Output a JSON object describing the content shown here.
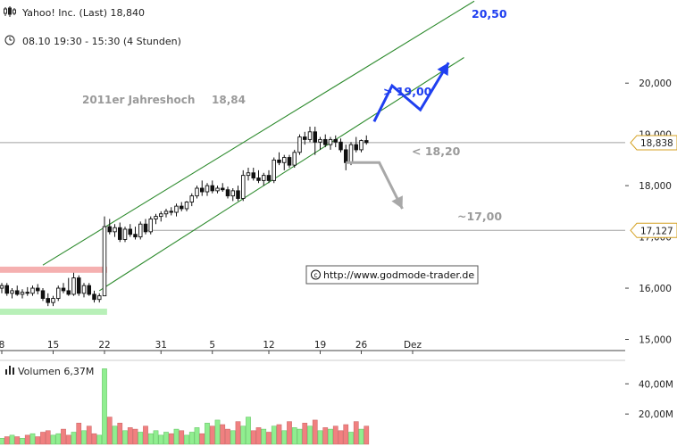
{
  "header": {
    "title": "Yahoo! Inc. (Last) 18,840",
    "timeframe": "08.10 19:30 - 15:30 (4 Stunden)"
  },
  "source": "http://www.godmode-trader.de",
  "volume_label": "Volumen 6,37M",
  "colors": {
    "channel": "#2e8b2e",
    "up_volume": "#90ee90",
    "down_volume": "#f08080",
    "bullish_arrow": "#1f3ff0",
    "bearish_arrow": "#a8a8a8",
    "resistance_zone": "#f5b0b0",
    "support_zone": "#b8f0b8",
    "hline": "#a0a0a0"
  },
  "chart_data": {
    "type": "candlestick",
    "price_axis": {
      "ticks": [
        "20,000",
        "18,000",
        "16,000",
        "15,000"
      ],
      "tick_values": [
        20.0,
        18.0,
        16.0,
        15.0
      ],
      "obscured_ticks": [
        "19,000",
        "17,000"
      ],
      "obscured_values": [
        19.0,
        17.0
      ],
      "range": [
        14.8,
        21.1
      ]
    },
    "volume_axis": {
      "ticks": [
        "40,00M",
        "20,00M"
      ],
      "tick_values": [
        40.0,
        20.0
      ],
      "range": [
        0,
        52
      ]
    },
    "x_axis": {
      "ticks": [
        "8",
        "15",
        "22",
        "31",
        "5",
        "12",
        "19",
        "26",
        "Dez"
      ]
    },
    "candles": [
      {
        "o": 16.0,
        "h": 16.1,
        "l": 15.9,
        "c": 16.05
      },
      {
        "o": 16.05,
        "h": 16.1,
        "l": 15.85,
        "c": 15.9
      },
      {
        "o": 15.9,
        "h": 16.0,
        "l": 15.8,
        "c": 15.95
      },
      {
        "o": 15.95,
        "h": 16.05,
        "l": 15.85,
        "c": 15.88
      },
      {
        "o": 15.88,
        "h": 15.98,
        "l": 15.8,
        "c": 15.92
      },
      {
        "o": 15.92,
        "h": 16.02,
        "l": 15.85,
        "c": 15.9
      },
      {
        "o": 15.9,
        "h": 16.05,
        "l": 15.85,
        "c": 16.0
      },
      {
        "o": 16.0,
        "h": 16.08,
        "l": 15.88,
        "c": 15.95
      },
      {
        "o": 15.95,
        "h": 16.0,
        "l": 15.75,
        "c": 15.8
      },
      {
        "o": 15.8,
        "h": 15.9,
        "l": 15.65,
        "c": 15.72
      },
      {
        "o": 15.72,
        "h": 15.85,
        "l": 15.65,
        "c": 15.8
      },
      {
        "o": 15.8,
        "h": 16.05,
        "l": 15.75,
        "c": 16.0
      },
      {
        "o": 16.0,
        "h": 16.1,
        "l": 15.9,
        "c": 15.95
      },
      {
        "o": 15.95,
        "h": 16.2,
        "l": 15.85,
        "c": 15.88
      },
      {
        "o": 15.88,
        "h": 16.3,
        "l": 15.85,
        "c": 16.2
      },
      {
        "o": 16.2,
        "h": 16.25,
        "l": 15.85,
        "c": 15.9
      },
      {
        "o": 15.9,
        "h": 16.1,
        "l": 15.82,
        "c": 16.05
      },
      {
        "o": 16.05,
        "h": 16.1,
        "l": 15.85,
        "c": 15.88
      },
      {
        "o": 15.88,
        "h": 15.95,
        "l": 15.72,
        "c": 15.78
      },
      {
        "o": 15.78,
        "h": 15.9,
        "l": 15.72,
        "c": 15.85
      },
      {
        "o": 15.85,
        "h": 17.4,
        "l": 15.85,
        "c": 17.2
      },
      {
        "o": 17.2,
        "h": 17.35,
        "l": 17.05,
        "c": 17.1
      },
      {
        "o": 17.1,
        "h": 17.25,
        "l": 17.0,
        "c": 17.18
      },
      {
        "o": 17.18,
        "h": 17.28,
        "l": 16.9,
        "c": 16.95
      },
      {
        "o": 16.95,
        "h": 17.2,
        "l": 16.9,
        "c": 17.15
      },
      {
        "o": 17.15,
        "h": 17.25,
        "l": 17.0,
        "c": 17.05
      },
      {
        "o": 17.05,
        "h": 17.2,
        "l": 16.95,
        "c": 17.0
      },
      {
        "o": 17.0,
        "h": 17.3,
        "l": 16.95,
        "c": 17.25
      },
      {
        "o": 17.25,
        "h": 17.35,
        "l": 17.05,
        "c": 17.1
      },
      {
        "o": 17.1,
        "h": 17.4,
        "l": 17.05,
        "c": 17.35
      },
      {
        "o": 17.35,
        "h": 17.45,
        "l": 17.25,
        "c": 17.4
      },
      {
        "o": 17.4,
        "h": 17.5,
        "l": 17.3,
        "c": 17.45
      },
      {
        "o": 17.45,
        "h": 17.55,
        "l": 17.38,
        "c": 17.5
      },
      {
        "o": 17.5,
        "h": 17.58,
        "l": 17.42,
        "c": 17.48
      },
      {
        "o": 17.48,
        "h": 17.65,
        "l": 17.4,
        "c": 17.6
      },
      {
        "o": 17.6,
        "h": 17.68,
        "l": 17.5,
        "c": 17.55
      },
      {
        "o": 17.55,
        "h": 17.7,
        "l": 17.5,
        "c": 17.68
      },
      {
        "o": 17.68,
        "h": 17.85,
        "l": 17.6,
        "c": 17.8
      },
      {
        "o": 17.8,
        "h": 18.0,
        "l": 17.75,
        "c": 17.95
      },
      {
        "o": 17.95,
        "h": 18.1,
        "l": 17.8,
        "c": 17.88
      },
      {
        "o": 17.88,
        "h": 18.05,
        "l": 17.8,
        "c": 18.0
      },
      {
        "o": 18.0,
        "h": 18.1,
        "l": 17.85,
        "c": 17.9
      },
      {
        "o": 17.9,
        "h": 18.0,
        "l": 17.85,
        "c": 17.95
      },
      {
        "o": 17.95,
        "h": 18.05,
        "l": 17.88,
        "c": 17.92
      },
      {
        "o": 17.92,
        "h": 17.98,
        "l": 17.75,
        "c": 17.8
      },
      {
        "o": 17.8,
        "h": 17.95,
        "l": 17.7,
        "c": 17.9
      },
      {
        "o": 17.9,
        "h": 18.0,
        "l": 17.7,
        "c": 17.75
      },
      {
        "o": 17.75,
        "h": 18.3,
        "l": 17.7,
        "c": 18.2
      },
      {
        "o": 18.2,
        "h": 18.35,
        "l": 18.1,
        "c": 18.25
      },
      {
        "o": 18.25,
        "h": 18.35,
        "l": 18.1,
        "c": 18.15
      },
      {
        "o": 18.15,
        "h": 18.3,
        "l": 18.05,
        "c": 18.1
      },
      {
        "o": 18.1,
        "h": 18.25,
        "l": 18.0,
        "c": 18.2
      },
      {
        "o": 18.2,
        "h": 18.3,
        "l": 18.05,
        "c": 18.1
      },
      {
        "o": 18.1,
        "h": 18.55,
        "l": 18.05,
        "c": 18.5
      },
      {
        "o": 18.5,
        "h": 18.65,
        "l": 18.4,
        "c": 18.45
      },
      {
        "o": 18.45,
        "h": 18.6,
        "l": 18.3,
        "c": 18.55
      },
      {
        "o": 18.55,
        "h": 18.6,
        "l": 18.35,
        "c": 18.4
      },
      {
        "o": 18.4,
        "h": 18.7,
        "l": 18.35,
        "c": 18.65
      },
      {
        "o": 18.65,
        "h": 19.0,
        "l": 18.6,
        "c": 18.95
      },
      {
        "o": 18.95,
        "h": 19.05,
        "l": 18.8,
        "c": 18.9
      },
      {
        "o": 18.9,
        "h": 19.15,
        "l": 18.85,
        "c": 19.05
      },
      {
        "o": 19.05,
        "h": 19.15,
        "l": 18.6,
        "c": 18.85
      },
      {
        "o": 18.85,
        "h": 18.95,
        "l": 18.7,
        "c": 18.9
      },
      {
        "o": 18.9,
        "h": 19.0,
        "l": 18.75,
        "c": 18.8
      },
      {
        "o": 18.8,
        "h": 18.95,
        "l": 18.7,
        "c": 18.9
      },
      {
        "o": 18.9,
        "h": 18.98,
        "l": 18.75,
        "c": 18.85
      },
      {
        "o": 18.85,
        "h": 18.92,
        "l": 18.65,
        "c": 18.7
      },
      {
        "o": 18.7,
        "h": 18.8,
        "l": 18.3,
        "c": 18.45
      },
      {
        "o": 18.45,
        "h": 18.85,
        "l": 18.4,
        "c": 18.8
      },
      {
        "o": 18.8,
        "h": 18.95,
        "l": 18.65,
        "c": 18.7
      },
      {
        "o": 18.7,
        "h": 18.9,
        "l": 18.65,
        "c": 18.88
      },
      {
        "o": 18.88,
        "h": 18.98,
        "l": 18.8,
        "c": 18.84
      }
    ],
    "volume": [
      4,
      5,
      6,
      5,
      4,
      6,
      7,
      5,
      8,
      9,
      6,
      7,
      10,
      6,
      8,
      14,
      9,
      12,
      7,
      6,
      50,
      18,
      12,
      14,
      9,
      11,
      10,
      8,
      12,
      7,
      9,
      6,
      8,
      7,
      10,
      9,
      6,
      8,
      11,
      7,
      14,
      12,
      16,
      13,
      10,
      9,
      15,
      12,
      18,
      9,
      11,
      10,
      8,
      12,
      13,
      9,
      15,
      11,
      10,
      14,
      12,
      16,
      9,
      11,
      10,
      12,
      9,
      13,
      8,
      15,
      10,
      12
    ],
    "channel": {
      "upper": [
        {
          "bar": 8.0,
          "price": 16.45
        },
        {
          "bar": 92.0,
          "price": 21.6
        }
      ],
      "lower": [
        {
          "bar": 19.0,
          "price": 15.95
        },
        {
          "bar": 90.0,
          "price": 20.5
        }
      ]
    },
    "zones": [
      {
        "name": "resistance",
        "from_bar": -1,
        "to_bar": 20.5,
        "low": 16.3,
        "high": 16.42
      },
      {
        "name": "support",
        "from_bar": -1,
        "to_bar": 20.5,
        "low": 15.48,
        "high": 15.6
      }
    ],
    "hlines": [
      {
        "value": 18.84,
        "from_bar": -1,
        "to_bar": 90
      },
      {
        "value": 17.127,
        "from_bar": 28,
        "to_bar": 90
      }
    ],
    "price_markers": [
      "18,838",
      "17,127"
    ],
    "price_marker_values": [
      18.838,
      17.127
    ],
    "bullish_scenario": [
      {
        "bar": 72.5,
        "price": 19.25
      },
      {
        "bar": 76.0,
        "price": 19.95
      },
      {
        "bar": 81.5,
        "price": 19.48
      },
      {
        "bar": 87.0,
        "price": 20.4
      }
    ],
    "bearish_scenario": [
      {
        "bar": 67.0,
        "price": 18.45
      },
      {
        "bar": 73.5,
        "price": 18.45
      },
      {
        "bar": 78.0,
        "price": 17.55
      }
    ],
    "annotations": {
      "high_label": "2011er Jahreshoch",
      "high_value": "18,84",
      "target_up": "20,50",
      "break_up": "> 19,00",
      "break_down": "< 18,20",
      "target_down": "~17,00"
    }
  }
}
